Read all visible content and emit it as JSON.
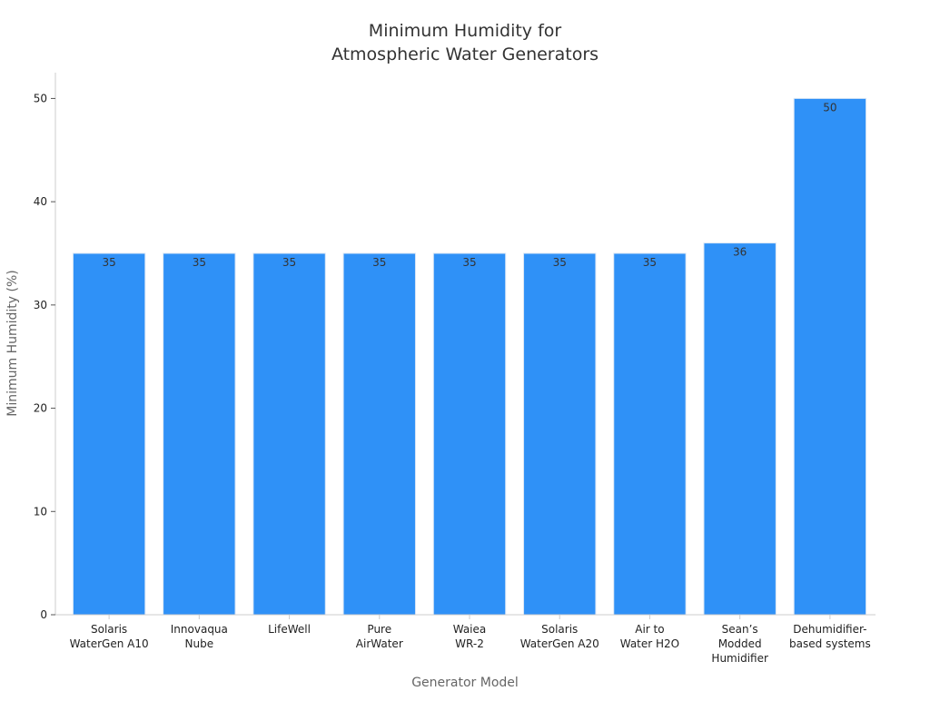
{
  "chart_data": {
    "type": "bar",
    "title": [
      "Minimum Humidity for",
      "Atmospheric Water Generators"
    ],
    "xlabel": "Generator Model",
    "ylabel": "Minimum Humidity (%)",
    "categories": [
      [
        "Solaris",
        "WaterGen A10"
      ],
      [
        "Innovaqua",
        "Nube"
      ],
      [
        "LifeWell"
      ],
      [
        "Pure",
        "AirWater"
      ],
      [
        "Waiea",
        "WR-2"
      ],
      [
        "Solaris",
        "WaterGen A20"
      ],
      [
        "Air to",
        "Water H2O"
      ],
      [
        "Sean’s",
        "Modded",
        "Humidifier"
      ],
      [
        "Dehumidifier-",
        "based systems"
      ]
    ],
    "values": [
      35,
      35,
      35,
      35,
      35,
      35,
      35,
      36,
      50
    ],
    "data_labels": [
      "35",
      "35",
      "35",
      "35",
      "35",
      "35",
      "35",
      "36",
      "50"
    ],
    "ylim": [
      0,
      52.5
    ],
    "yticks": [
      0,
      10,
      20,
      30,
      40,
      50
    ],
    "grid": false,
    "legend": "none",
    "colors": {
      "bar": "#2f91f7",
      "bar_edge": "#d9e6f5",
      "axis": "#cccccc",
      "title": "#333333",
      "axis_label": "#666666",
      "tick": "#222222"
    }
  }
}
